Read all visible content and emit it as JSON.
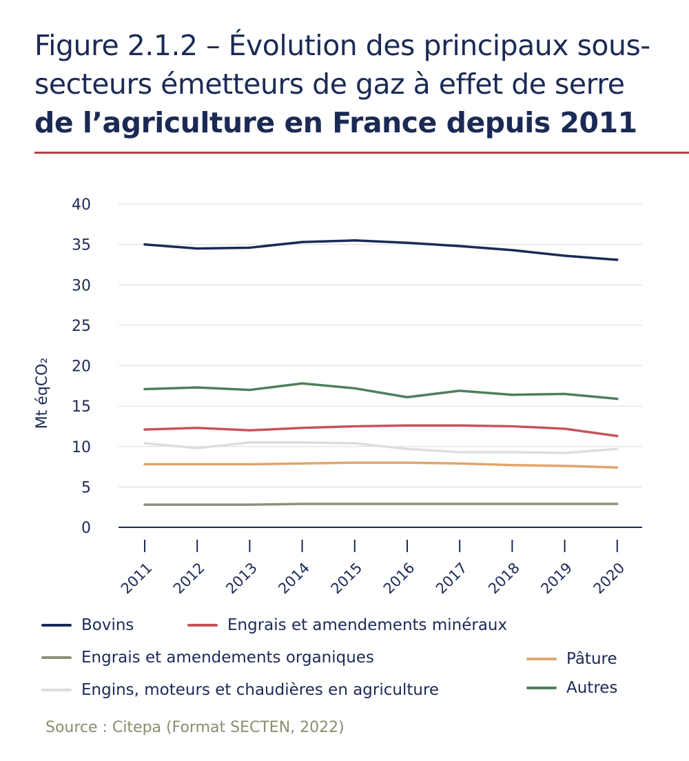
{
  "header": {
    "title_line1": "Figure 2.1.2 – Évolution des principaux sous-",
    "title_line2": "secteurs émetteurs de gaz à effet de serre",
    "title_line3": "de l’agriculture en France depuis 2011"
  },
  "source": "Source : Citepa (Format SECTEN, 2022)",
  "chart_data": {
    "type": "line",
    "title": "Figure 2.1.2 – Évolution des principaux sous-secteurs émetteurs de gaz à effet de serre de l’agriculture en France depuis 2011",
    "ylabel": "Mt éqCO₂",
    "xlabel": "",
    "ylim": [
      0,
      40
    ],
    "yticks": [
      "0",
      "5",
      "10",
      "15",
      "20",
      "25",
      "30",
      "35",
      "40"
    ],
    "grid": true,
    "legend_position": "bottom",
    "categories": [
      "2011",
      "2012",
      "2013",
      "2014",
      "2015",
      "2016",
      "2017",
      "2018",
      "2019",
      "2020"
    ],
    "series": [
      {
        "name": "Bovins",
        "color": "#1b2a55",
        "values": [
          35.0,
          34.5,
          34.6,
          35.3,
          35.5,
          35.2,
          34.8,
          34.3,
          33.6,
          33.1
        ]
      },
      {
        "name": "Engrais et amendements minéraux",
        "color": "#c6535a",
        "values": [
          12.1,
          12.3,
          12.0,
          12.3,
          12.5,
          12.6,
          12.6,
          12.5,
          12.2,
          11.3
        ]
      },
      {
        "name": "Engrais et amendements organiques",
        "color": "#8f8f7a",
        "values": [
          2.8,
          2.8,
          2.8,
          2.9,
          2.9,
          2.9,
          2.9,
          2.9,
          2.9,
          2.9
        ]
      },
      {
        "name": "Pâture",
        "color": "#e0a56b",
        "values": [
          7.8,
          7.8,
          7.8,
          7.9,
          8.0,
          8.0,
          7.9,
          7.7,
          7.6,
          7.4
        ]
      },
      {
        "name": "Engins, moteurs et chaudières en agriculture",
        "color": "#dddddd",
        "values": [
          10.4,
          9.8,
          10.5,
          10.5,
          10.4,
          9.7,
          9.3,
          9.3,
          9.2,
          9.7
        ]
      },
      {
        "name": "Autres",
        "color": "#4e7f5a",
        "values": [
          17.1,
          17.3,
          17.0,
          17.8,
          17.2,
          16.1,
          16.9,
          16.4,
          16.5,
          15.9
        ]
      }
    ]
  }
}
